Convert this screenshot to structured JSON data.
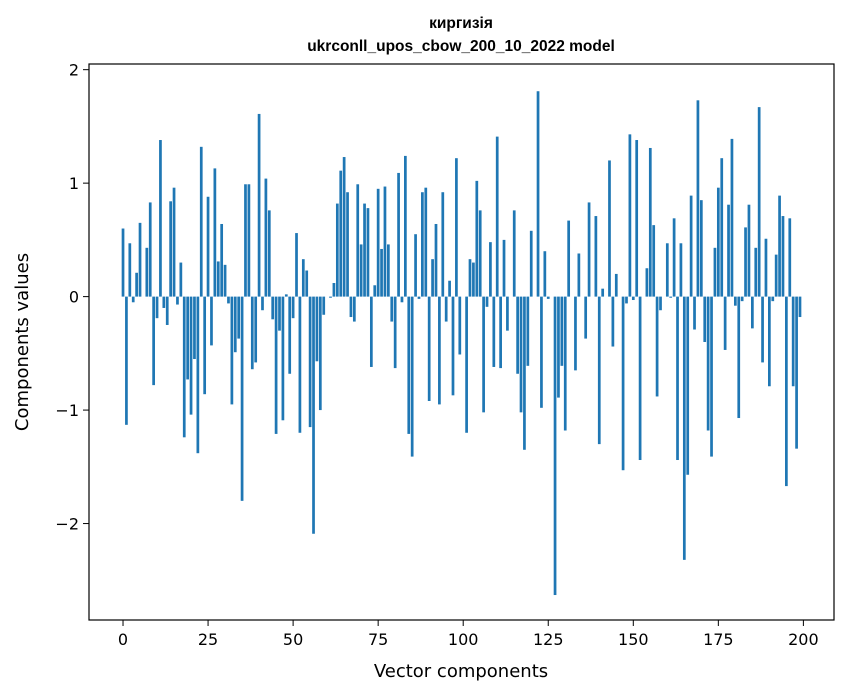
{
  "chart_data": {
    "type": "bar",
    "title": "киргизія",
    "subtitle": "ukrconll_upos_cbow_200_10_2022 model",
    "xlabel": "Vector components",
    "ylabel": "Components values",
    "xlim": [
      -10,
      209
    ],
    "ylim": [
      -2.85,
      2.05
    ],
    "xticks": [
      0,
      25,
      50,
      75,
      100,
      125,
      150,
      175,
      200
    ],
    "yticks": [
      -2,
      -1,
      0,
      1,
      2
    ],
    "ytick_labels": [
      "−2",
      "−1",
      "0",
      "1",
      "2"
    ],
    "bar_color": "#1f77b4",
    "grid": false,
    "x": [
      0,
      1,
      2,
      3,
      4,
      5,
      6,
      7,
      8,
      9,
      10,
      11,
      12,
      13,
      14,
      15,
      16,
      17,
      18,
      19,
      20,
      21,
      22,
      23,
      24,
      25,
      26,
      27,
      28,
      29,
      30,
      31,
      32,
      33,
      34,
      35,
      36,
      37,
      38,
      39,
      40,
      41,
      42,
      43,
      44,
      45,
      46,
      47,
      48,
      49,
      50,
      51,
      52,
      53,
      54,
      55,
      56,
      57,
      58,
      59,
      60,
      61,
      62,
      63,
      64,
      65,
      66,
      67,
      68,
      69,
      70,
      71,
      72,
      73,
      74,
      75,
      76,
      77,
      78,
      79,
      80,
      81,
      82,
      83,
      84,
      85,
      86,
      87,
      88,
      89,
      90,
      91,
      92,
      93,
      94,
      95,
      96,
      97,
      98,
      99,
      100,
      101,
      102,
      103,
      104,
      105,
      106,
      107,
      108,
      109,
      110,
      111,
      112,
      113,
      114,
      115,
      116,
      117,
      118,
      119,
      120,
      121,
      122,
      123,
      124,
      125,
      126,
      127,
      128,
      129,
      130,
      131,
      132,
      133,
      134,
      135,
      136,
      137,
      138,
      139,
      140,
      141,
      142,
      143,
      144,
      145,
      146,
      147,
      148,
      149,
      150,
      151,
      152,
      153,
      154,
      155,
      156,
      157,
      158,
      159,
      160,
      161,
      162,
      163,
      164,
      165,
      166,
      167,
      168,
      169,
      170,
      171,
      172,
      173,
      174,
      175,
      176,
      177,
      178,
      179,
      180,
      181,
      182,
      183,
      184,
      185,
      186,
      187,
      188,
      189,
      190,
      191,
      192,
      193,
      194,
      195,
      196,
      197,
      198,
      199
    ],
    "values": [
      0.6,
      -1.13,
      0.47,
      -0.05,
      0.21,
      0.65,
      0.0,
      0.43,
      0.83,
      -0.78,
      -0.19,
      1.38,
      -0.1,
      -0.25,
      0.84,
      0.96,
      -0.07,
      0.3,
      -1.24,
      -0.73,
      -1.04,
      -0.55,
      -1.38,
      1.32,
      -0.86,
      0.88,
      -0.43,
      1.13,
      0.31,
      0.64,
      0.28,
      -0.06,
      -0.95,
      -0.49,
      -0.37,
      -1.8,
      0.99,
      0.99,
      -0.64,
      -0.58,
      1.61,
      -0.12,
      1.04,
      0.76,
      -0.2,
      -1.21,
      -0.3,
      -1.09,
      0.02,
      -0.68,
      -0.19,
      0.56,
      -1.2,
      0.33,
      0.23,
      -1.15,
      -2.09,
      -0.57,
      -1.0,
      -0.16,
      0.0,
      -0.01,
      0.12,
      0.82,
      1.11,
      1.23,
      0.92,
      -0.18,
      -0.22,
      0.99,
      0.46,
      0.82,
      0.78,
      -0.62,
      0.1,
      0.95,
      0.42,
      0.97,
      0.46,
      -0.22,
      -0.63,
      1.09,
      -0.05,
      1.24,
      -1.21,
      -1.41,
      0.55,
      -0.02,
      0.92,
      0.96,
      -0.92,
      0.33,
      0.64,
      -0.95,
      0.92,
      -0.22,
      0.14,
      -0.87,
      1.22,
      -0.51,
      0.0,
      -1.2,
      0.33,
      0.3,
      1.02,
      0.76,
      -1.02,
      -0.09,
      0.48,
      -0.62,
      1.41,
      -0.63,
      0.5,
      -0.3,
      0.0,
      0.76,
      -0.68,
      -1.02,
      -1.35,
      -0.61,
      0.58,
      0.0,
      1.81,
      -0.98,
      0.4,
      -0.02,
      0.0,
      -2.63,
      -0.89,
      -0.61,
      -1.18,
      0.67,
      0.0,
      -0.65,
      0.38,
      0.0,
      -0.37,
      0.83,
      0.0,
      0.71,
      -1.3,
      0.07,
      0.0,
      1.2,
      -0.44,
      0.2,
      0.0,
      -1.53,
      -0.06,
      1.43,
      -0.03,
      1.38,
      -1.44,
      0.0,
      0.25,
      1.31,
      0.63,
      -0.88,
      -0.12,
      0.0,
      0.47,
      -0.01,
      0.69,
      -1.44,
      0.47,
      -2.32,
      -1.57,
      0.89,
      -0.29,
      1.73,
      0.85,
      -0.4,
      -1.18,
      -1.41,
      0.43,
      0.96,
      1.22,
      -0.47,
      0.81,
      1.39,
      -0.08,
      -1.07,
      -0.04,
      0.61,
      0.81,
      -0.28,
      0.43,
      1.67,
      -0.58,
      0.51,
      -0.79,
      -0.04,
      0.37,
      0.89,
      0.71,
      -1.67,
      0.69,
      -0.79,
      -1.34,
      -0.18
    ]
  }
}
